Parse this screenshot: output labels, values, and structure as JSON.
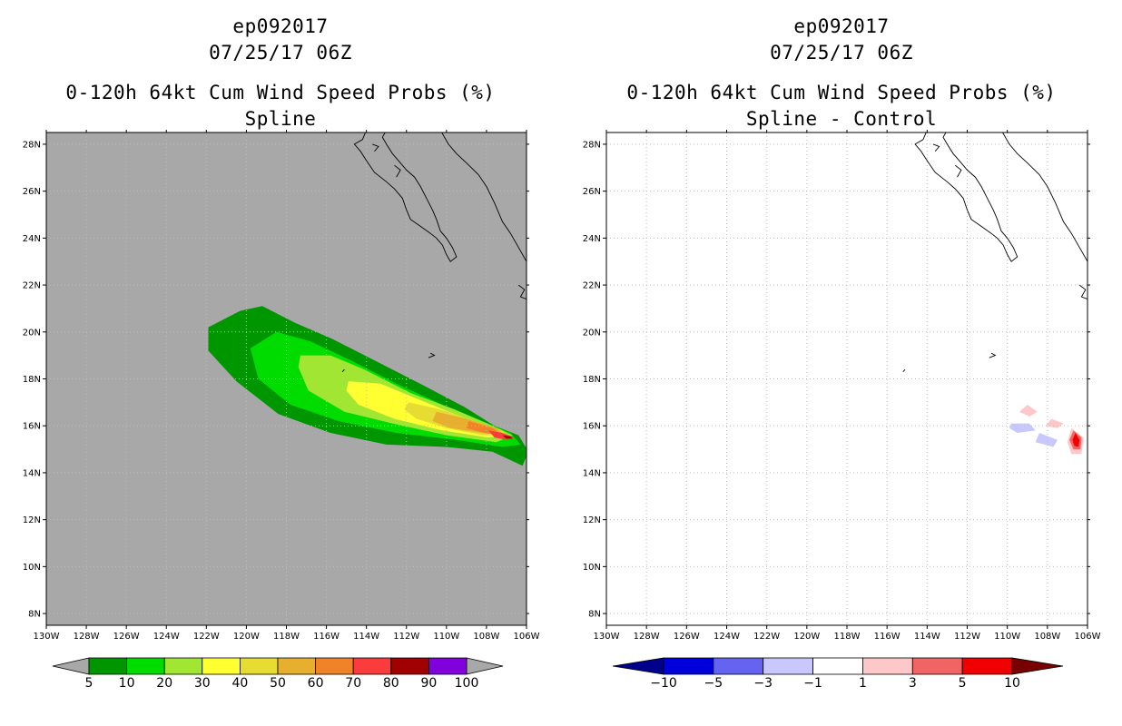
{
  "chart_data": [
    {
      "type": "heatmap",
      "storm_id": "ep092017",
      "datetime": "07/25/17 06Z",
      "title": "0-120h 64kt Cum Wind Speed Probs (%)",
      "subtitle": "Spline",
      "xlim": [
        130,
        106
      ],
      "ylim": [
        7.5,
        28.5
      ],
      "x_ticks": [
        "130W",
        "128W",
        "126W",
        "124W",
        "122W",
        "120W",
        "118W",
        "116W",
        "114W",
        "112W",
        "110W",
        "108W",
        "106W"
      ],
      "y_ticks": [
        "8N",
        "10N",
        "12N",
        "14N",
        "16N",
        "18N",
        "20N",
        "22N",
        "24N",
        "26N",
        "28N"
      ],
      "grid": true,
      "background": "#a8a8a8",
      "colorbar": {
        "labels": [
          "5",
          "10",
          "20",
          "30",
          "40",
          "50",
          "60",
          "70",
          "80",
          "90",
          "100"
        ],
        "colors": [
          "#009600",
          "#00dc00",
          "#a0e632",
          "#ffff32",
          "#e6dc32",
          "#e6af2d",
          "#f08228",
          "#fa3c3c",
          "#a00000",
          "#8200dc"
        ],
        "under_color": "#a8a8a8",
        "over_color": "#a8a8a8"
      },
      "contours": [
        {
          "level": "5-10",
          "color": "#009600",
          "polygon": [
            [
              121.9,
              20.2
            ],
            [
              120.3,
              20.9
            ],
            [
              119.2,
              21.1
            ],
            [
              117.6,
              20.4
            ],
            [
              115.7,
              19.7
            ],
            [
              113.4,
              18.7
            ],
            [
              111.1,
              17.7
            ],
            [
              109.1,
              16.8
            ],
            [
              107.6,
              16.0
            ],
            [
              106.4,
              15.6
            ],
            [
              105.9,
              14.9
            ],
            [
              106.2,
              14.3
            ],
            [
              107.7,
              14.9
            ],
            [
              110.0,
              15.1
            ],
            [
              113.0,
              15.2
            ],
            [
              115.8,
              15.7
            ],
            [
              118.4,
              16.5
            ],
            [
              120.5,
              17.9
            ],
            [
              121.9,
              19.2
            ]
          ]
        },
        {
          "level": "10-20",
          "color": "#00dc00",
          "polygon": [
            [
              119.8,
              19.3
            ],
            [
              118.5,
              20.0
            ],
            [
              116.8,
              19.6
            ],
            [
              114.8,
              18.8
            ],
            [
              112.5,
              17.8
            ],
            [
              110.2,
              16.9
            ],
            [
              108.2,
              16.2
            ],
            [
              106.8,
              15.7
            ],
            [
              106.3,
              15.2
            ],
            [
              107.2,
              15.1
            ],
            [
              109.5,
              15.4
            ],
            [
              112.5,
              15.7
            ],
            [
              115.4,
              16.2
            ],
            [
              117.8,
              16.9
            ],
            [
              119.4,
              18.0
            ]
          ]
        },
        {
          "level": "20-30",
          "color": "#a0e632",
          "polygon": [
            [
              117.3,
              19.0
            ],
            [
              115.8,
              19.0
            ],
            [
              114.1,
              18.4
            ],
            [
              111.8,
              17.4
            ],
            [
              109.6,
              16.7
            ],
            [
              107.7,
              16.0
            ],
            [
              106.7,
              15.6
            ],
            [
              107.5,
              15.3
            ],
            [
              110.0,
              15.6
            ],
            [
              112.7,
              16.1
            ],
            [
              115.1,
              16.6
            ],
            [
              116.9,
              17.5
            ],
            [
              117.4,
              18.5
            ]
          ]
        },
        {
          "level": "30-40",
          "color": "#ffff32",
          "polygon": [
            [
              114.9,
              17.9
            ],
            [
              113.3,
              17.8
            ],
            [
              111.6,
              17.2
            ],
            [
              109.6,
              16.5
            ],
            [
              107.7,
              15.9
            ],
            [
              106.9,
              15.6
            ],
            [
              107.9,
              15.5
            ],
            [
              110.2,
              15.8
            ],
            [
              112.6,
              16.3
            ],
            [
              114.4,
              16.9
            ],
            [
              115.0,
              17.5
            ]
          ]
        },
        {
          "level": "40-50",
          "color": "#e6dc32",
          "polygon": [
            [
              111.9,
              17.0
            ],
            [
              110.3,
              16.7
            ],
            [
              108.6,
              16.2
            ],
            [
              107.2,
              15.8
            ],
            [
              107.0,
              15.6
            ],
            [
              108.2,
              15.6
            ],
            [
              110.0,
              15.9
            ],
            [
              111.5,
              16.3
            ],
            [
              112.1,
              16.7
            ]
          ]
        },
        {
          "level": "50-60",
          "color": "#e6af2d",
          "polygon": [
            [
              110.5,
              16.6
            ],
            [
              109.0,
              16.3
            ],
            [
              107.5,
              15.9
            ],
            [
              107.1,
              15.6
            ],
            [
              108.3,
              15.7
            ],
            [
              109.8,
              15.9
            ],
            [
              110.7,
              16.2
            ]
          ]
        },
        {
          "level": "60-70",
          "color": "#f08228",
          "polygon": [
            [
              108.9,
              16.2
            ],
            [
              107.7,
              15.9
            ],
            [
              107.2,
              15.6
            ],
            [
              108.1,
              15.7
            ],
            [
              109.0,
              15.9
            ]
          ]
        },
        {
          "level": "70-80",
          "color": "#fa3c3c",
          "polygon": [
            [
              107.9,
              15.8
            ],
            [
              107.2,
              15.7
            ],
            [
              106.6,
              15.5
            ],
            [
              107.0,
              15.4
            ],
            [
              107.6,
              15.5
            ]
          ]
        },
        {
          "level": "80-90",
          "color": "#a00000",
          "polygon": [
            [
              107.2,
              15.6
            ],
            [
              106.8,
              15.55
            ],
            [
              106.7,
              15.45
            ],
            [
              107.0,
              15.45
            ]
          ]
        }
      ]
    },
    {
      "type": "heatmap",
      "storm_id": "ep092017",
      "datetime": "07/25/17 06Z",
      "title": "0-120h 64kt Cum Wind Speed Probs (%)",
      "subtitle": "Spline - Control",
      "xlim": [
        130,
        106
      ],
      "ylim": [
        7.5,
        28.5
      ],
      "x_ticks": [
        "130W",
        "128W",
        "126W",
        "124W",
        "122W",
        "120W",
        "118W",
        "116W",
        "114W",
        "112W",
        "110W",
        "108W",
        "106W"
      ],
      "y_ticks": [
        "8N",
        "10N",
        "12N",
        "14N",
        "16N",
        "18N",
        "20N",
        "22N",
        "24N",
        "26N",
        "28N"
      ],
      "grid": true,
      "background": "#ffffff",
      "colorbar": {
        "labels": [
          "-10",
          "-5",
          "-3",
          "-1",
          "1",
          "3",
          "5",
          "10"
        ],
        "colors": [
          "#0000dc",
          "#6464f0",
          "#c8c8ff",
          "#ffffff",
          "#ffc8c8",
          "#f06464",
          "#f00000"
        ],
        "under_color": "#00008c",
        "over_color": "#780000"
      },
      "contours": [
        {
          "level": "1-3",
          "color": "#ffc8c8",
          "polygon": [
            [
              109.0,
              16.9
            ],
            [
              108.5,
              16.6
            ],
            [
              108.9,
              16.4
            ],
            [
              109.4,
              16.6
            ]
          ]
        },
        {
          "level": "1-3",
          "color": "#ffc8c8",
          "polygon": [
            [
              107.8,
              16.3
            ],
            [
              107.2,
              16.1
            ],
            [
              107.5,
              15.9
            ],
            [
              108.1,
              16.0
            ]
          ]
        },
        {
          "level": "-3--1",
          "color": "#c8c8ff",
          "polygon": [
            [
              109.8,
              16.1
            ],
            [
              108.9,
              16.1
            ],
            [
              108.6,
              15.8
            ],
            [
              109.5,
              15.7
            ],
            [
              109.9,
              15.9
            ]
          ]
        },
        {
          "level": "-3--1",
          "color": "#c8c8ff",
          "polygon": [
            [
              108.4,
              15.7
            ],
            [
              107.5,
              15.4
            ],
            [
              107.7,
              15.1
            ],
            [
              108.6,
              15.3
            ]
          ]
        },
        {
          "level": "1-3",
          "color": "#ffc8c8",
          "polygon": [
            [
              106.8,
              15.9
            ],
            [
              106.2,
              15.5
            ],
            [
              106.3,
              14.8
            ],
            [
              106.8,
              14.8
            ],
            [
              107.0,
              15.3
            ]
          ]
        },
        {
          "level": "3-5",
          "color": "#f06464",
          "polygon": [
            [
              106.7,
              15.8
            ],
            [
              106.3,
              15.5
            ],
            [
              106.35,
              15.0
            ],
            [
              106.7,
              15.0
            ],
            [
              106.9,
              15.4
            ]
          ]
        },
        {
          "level": "5-10",
          "color": "#f00000",
          "polygon": [
            [
              106.6,
              15.7
            ],
            [
              106.4,
              15.4
            ],
            [
              106.45,
              15.1
            ],
            [
              106.65,
              15.15
            ],
            [
              106.75,
              15.4
            ]
          ]
        }
      ]
    }
  ],
  "coastline": [
    [
      [
        113.0,
        28.6
      ],
      [
        113.2,
        28.3
      ],
      [
        113.0,
        28.0
      ],
      [
        112.7,
        27.6
      ],
      [
        112.3,
        27.2
      ],
      [
        112.0,
        26.9
      ],
      [
        111.6,
        26.6
      ],
      [
        111.3,
        26.2
      ],
      [
        111.0,
        25.7
      ],
      [
        110.7,
        25.2
      ],
      [
        110.5,
        24.8
      ],
      [
        110.3,
        24.3
      ],
      [
        110.0,
        24.0
      ],
      [
        109.7,
        23.6
      ],
      [
        109.5,
        23.2
      ],
      [
        109.8,
        23.0
      ],
      [
        110.0,
        23.3
      ],
      [
        110.2,
        23.7
      ],
      [
        110.5,
        24.0
      ],
      [
        110.8,
        24.2
      ],
      [
        111.3,
        24.5
      ],
      [
        111.8,
        24.8
      ],
      [
        112.0,
        25.2
      ],
      [
        112.2,
        25.7
      ],
      [
        112.6,
        26.1
      ],
      [
        113.0,
        26.4
      ],
      [
        113.6,
        26.8
      ],
      [
        114.0,
        27.3
      ],
      [
        114.3,
        27.7
      ],
      [
        114.6,
        28.0
      ],
      [
        114.2,
        28.2
      ],
      [
        114.0,
        28.6
      ]
    ],
    [
      [
        110.3,
        28.6
      ],
      [
        109.9,
        28.0
      ],
      [
        109.5,
        27.6
      ],
      [
        109.0,
        27.2
      ],
      [
        108.4,
        26.7
      ],
      [
        108.0,
        26.2
      ],
      [
        107.6,
        25.5
      ],
      [
        107.2,
        24.7
      ],
      [
        106.8,
        24.2
      ],
      [
        106.4,
        23.6
      ],
      [
        106.0,
        23.0
      ]
    ],
    [
      [
        112.5,
        26.6
      ],
      [
        112.3,
        26.9
      ],
      [
        112.6,
        27.1
      ]
    ],
    [
      [
        113.6,
        27.7
      ],
      [
        113.4,
        27.9
      ],
      [
        113.7,
        28.0
      ]
    ],
    [
      [
        106.4,
        22.0
      ],
      [
        106.1,
        21.8
      ],
      [
        106.3,
        21.5
      ],
      [
        106.0,
        21.4
      ]
    ],
    [
      [
        110.8,
        19.1
      ],
      [
        110.6,
        19.0
      ],
      [
        110.9,
        18.9
      ]
    ],
    [
      [
        115.2,
        18.3
      ],
      [
        115.1,
        18.4
      ]
    ]
  ]
}
